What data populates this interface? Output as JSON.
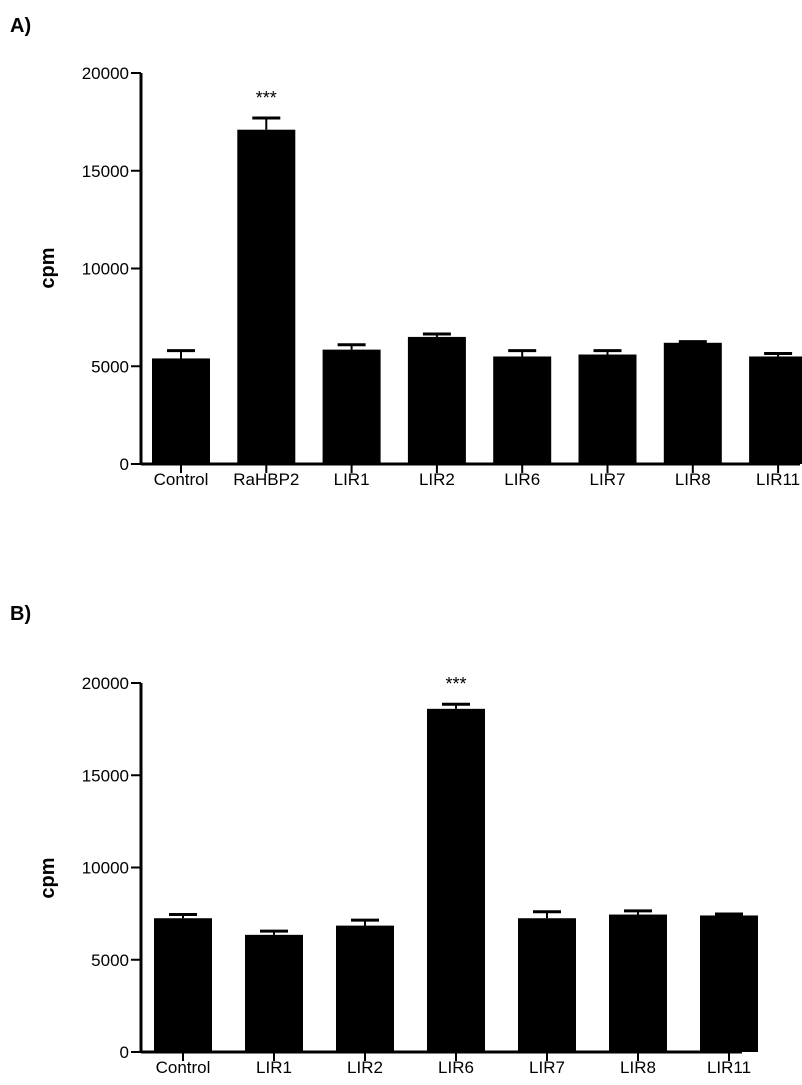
{
  "chart_data": [
    {
      "type": "bar",
      "panel_label": "A)",
      "ylabel": "cpm",
      "xlabel": "",
      "ylim": [
        0,
        20000
      ],
      "yticks": [
        "0",
        "5000",
        "10000",
        "15000",
        "20000"
      ],
      "categories": [
        "Control",
        "RaHBP2",
        "LIR1",
        "LIR2",
        "LIR6",
        "LIR7",
        "LIR8",
        "LIR11"
      ],
      "values": [
        5400,
        17100,
        5850,
        6500,
        5500,
        5600,
        6200,
        5500
      ],
      "errors": [
        400,
        600,
        250,
        150,
        300,
        200,
        60,
        150
      ],
      "annotations": [
        {
          "category": "RaHBP2",
          "text": "***"
        }
      ],
      "bar_color": "#000000"
    },
    {
      "type": "bar",
      "panel_label": "B)",
      "ylabel": "cpm",
      "xlabel": "",
      "ylim": [
        0,
        20000
      ],
      "yticks": [
        "0",
        "5000",
        "10000",
        "15000",
        "20000"
      ],
      "categories": [
        "Control",
        "LIR1",
        "LIR2",
        "LIR6",
        "LIR7",
        "LIR8",
        "LIR11"
      ],
      "values": [
        7250,
        6350,
        6850,
        18600,
        7250,
        7450,
        7400
      ],
      "errors": [
        200,
        200,
        300,
        250,
        350,
        200,
        80
      ],
      "annotations": [
        {
          "category": "LIR6",
          "text": "***"
        }
      ],
      "bar_color": "#000000"
    }
  ]
}
